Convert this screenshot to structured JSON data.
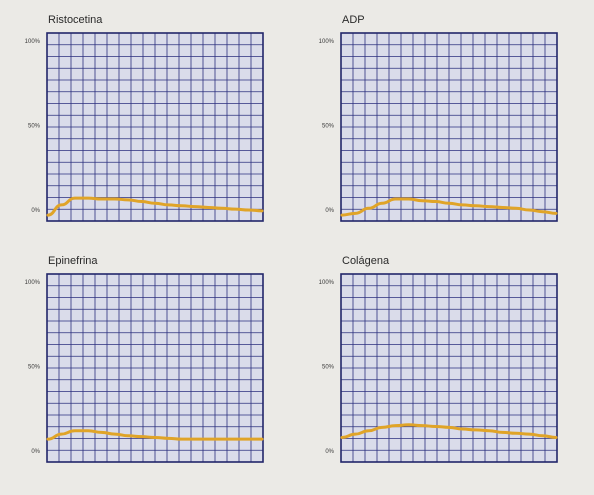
{
  "chart_data": [
    {
      "type": "line",
      "title": "Ristocetina",
      "yticks": [
        "100%",
        "50%",
        "0%"
      ],
      "ylim": [
        0,
        100
      ],
      "x": [
        0,
        1,
        2,
        3,
        4,
        5,
        6,
        7,
        8,
        9,
        10,
        11,
        12,
        13,
        14,
        15,
        16
      ],
      "series": [
        {
          "values": [
            -3,
            3,
            7,
            7,
            6.5,
            6.5,
            6,
            5,
            4,
            3,
            2.5,
            2,
            1.5,
            1,
            0.5,
            0,
            -0.5
          ]
        }
      ],
      "grid": true,
      "line_color": "#e0a428"
    },
    {
      "type": "line",
      "title": "ADP",
      "yticks": [
        "100%",
        "50%",
        "0%"
      ],
      "ylim": [
        0,
        100
      ],
      "x": [
        0,
        1,
        2,
        3,
        4,
        5,
        6,
        7,
        8,
        9,
        10,
        11,
        12,
        13,
        14,
        15,
        16
      ],
      "series": [
        {
          "values": [
            -3,
            -2,
            1,
            4,
            6.5,
            6.5,
            5.5,
            5,
            4,
            3,
            2.5,
            2,
            1.5,
            1,
            0,
            -1,
            -2
          ]
        }
      ],
      "grid": true,
      "line_color": "#e0a428"
    },
    {
      "type": "line",
      "title": "Epinefrina",
      "yticks": [
        "100%",
        "50%",
        "0%"
      ],
      "ylim": [
        0,
        100
      ],
      "x": [
        0,
        1,
        2,
        3,
        4,
        5,
        6,
        7,
        8,
        9,
        10,
        11,
        12,
        13,
        14,
        15,
        16
      ],
      "series": [
        {
          "values": [
            7,
            10,
            12,
            12,
            11,
            10,
            9,
            8.5,
            8,
            7.5,
            7,
            7,
            7,
            7,
            7,
            7,
            7
          ]
        }
      ],
      "grid": true,
      "line_color": "#e0a428"
    },
    {
      "type": "line",
      "title": "Colágena",
      "yticks": [
        "100%",
        "50%",
        "0%"
      ],
      "ylim": [
        0,
        100
      ],
      "x": [
        0,
        1,
        2,
        3,
        4,
        5,
        6,
        7,
        8,
        9,
        10,
        11,
        12,
        13,
        14,
        15,
        16
      ],
      "series": [
        {
          "values": [
            8,
            10,
            12,
            14,
            15,
            15.5,
            15,
            14.5,
            14,
            13,
            12.5,
            12,
            11,
            10.5,
            10,
            9,
            8
          ]
        }
      ],
      "grid": true,
      "line_color": "#e0a428"
    }
  ],
  "style": {
    "grid_fill": "#dadcea",
    "grid_line": "#2b2f7e",
    "frame": "#22266a"
  }
}
